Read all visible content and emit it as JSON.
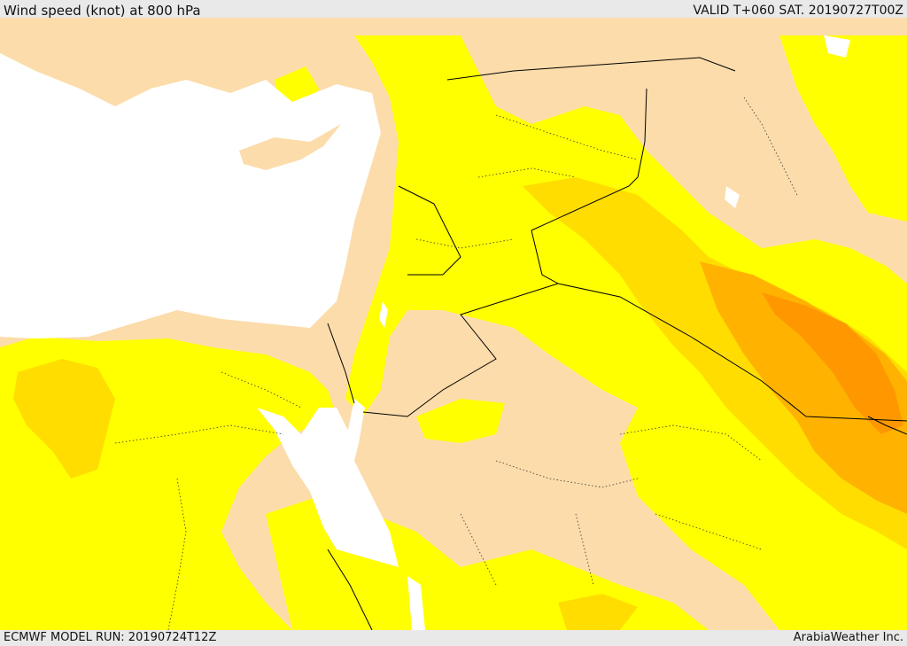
{
  "header": {
    "title": "Wind speed (knot) at 800 hPa",
    "valid_time": "VALID T+060 SAT. 20190727T00Z"
  },
  "footer": {
    "model_run": "ECMWF MODEL RUN: 20190724T12Z",
    "credit": "ArabiaWeather Inc."
  },
  "colors": {
    "sea": "#ffffff",
    "calm": "#fcdcaa",
    "light": "#ffff00",
    "moderate": "#ffdd00",
    "fresh": "#ffb300",
    "strong": "#ff9800",
    "frame": "#e6e6e6"
  },
  "map": {
    "region": "Eastern Mediterranean, Levant, Iraq and northern Arabian Peninsula",
    "boundaries": "country borders solid black, admin borders dotted"
  }
}
